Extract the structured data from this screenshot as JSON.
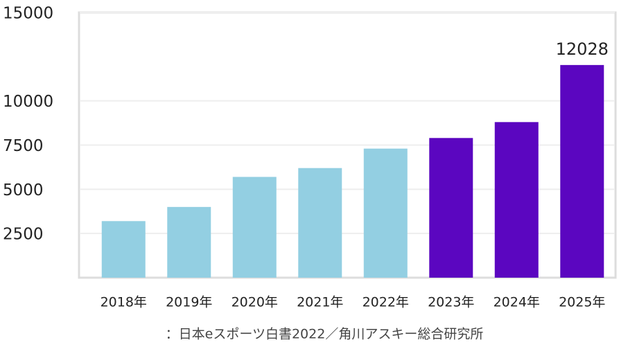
{
  "chart_data": {
    "type": "bar",
    "categories": [
      "2018年",
      "2019年",
      "2020年",
      "2021年",
      "2022年",
      "2023年",
      "2024年",
      "2025年"
    ],
    "values": [
      3200,
      4000,
      5700,
      6200,
      7300,
      7900,
      8800,
      12028
    ],
    "value_labels": [
      null,
      null,
      null,
      null,
      null,
      null,
      null,
      "12028"
    ],
    "colors": [
      "#93cfe2",
      "#93cfe2",
      "#93cfe2",
      "#93cfe2",
      "#93cfe2",
      "#5b06c0",
      "#5b06c0",
      "#5b06c0"
    ],
    "ylim": [
      0,
      15000
    ],
    "yticks": [
      2500,
      5000,
      7500,
      10000,
      15000
    ],
    "grid": true,
    "source": "：日本eスポーツ白書2022／角川アスキー総合研究所"
  }
}
